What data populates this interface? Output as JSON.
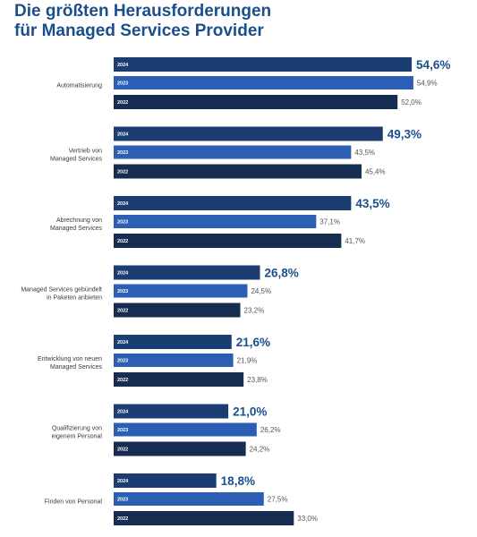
{
  "title_line1": "Die größten Herausforderungen",
  "title_line2": "für Managed Services Provider",
  "colors": {
    "2024": "#1b3d72",
    "2023": "#2c5fb3",
    "2022": "#172c51",
    "title": "#1a4f8c"
  },
  "chart_data": {
    "type": "bar",
    "orientation": "horizontal",
    "title": "Die größten Herausforderungen für Managed Services Provider",
    "xlim": [
      0,
      60
    ],
    "grid": false,
    "series": [
      {
        "name": "2024",
        "values": [
          54.6,
          49.3,
          43.5,
          26.8,
          21.6,
          21.0,
          18.8
        ],
        "labels": [
          "54,6%",
          "49,3%",
          "43,5%",
          "26,8%",
          "21,6%",
          "21,0%",
          "18,8%"
        ]
      },
      {
        "name": "2023",
        "values": [
          54.9,
          43.5,
          37.1,
          24.5,
          21.9,
          26.2,
          27.5
        ],
        "labels": [
          "54,9%",
          "43,5%",
          "37,1%",
          "24,5%",
          "21,9%",
          "26,2%",
          "27,5%"
        ]
      },
      {
        "name": "2022",
        "values": [
          52.0,
          45.4,
          41.7,
          23.2,
          23.8,
          24.2,
          33.0
        ],
        "labels": [
          "52,0%",
          "45,4%",
          "41,7%",
          "23,2%",
          "23,8%",
          "24,2%",
          "33,0%"
        ]
      }
    ],
    "categories": [
      [
        "Automatisierung"
      ],
      [
        "Vertrieb von",
        "Managed Services"
      ],
      [
        "Abrechnung von",
        "Managed Services"
      ],
      [
        "Managed Services gebündelt",
        "in Paketen anbieten"
      ],
      [
        "Entwicklung von neuen",
        "Managed Services"
      ],
      [
        "Qualifizierung von",
        "eigenem Personal"
      ],
      [
        "Finden von Personal"
      ]
    ]
  }
}
